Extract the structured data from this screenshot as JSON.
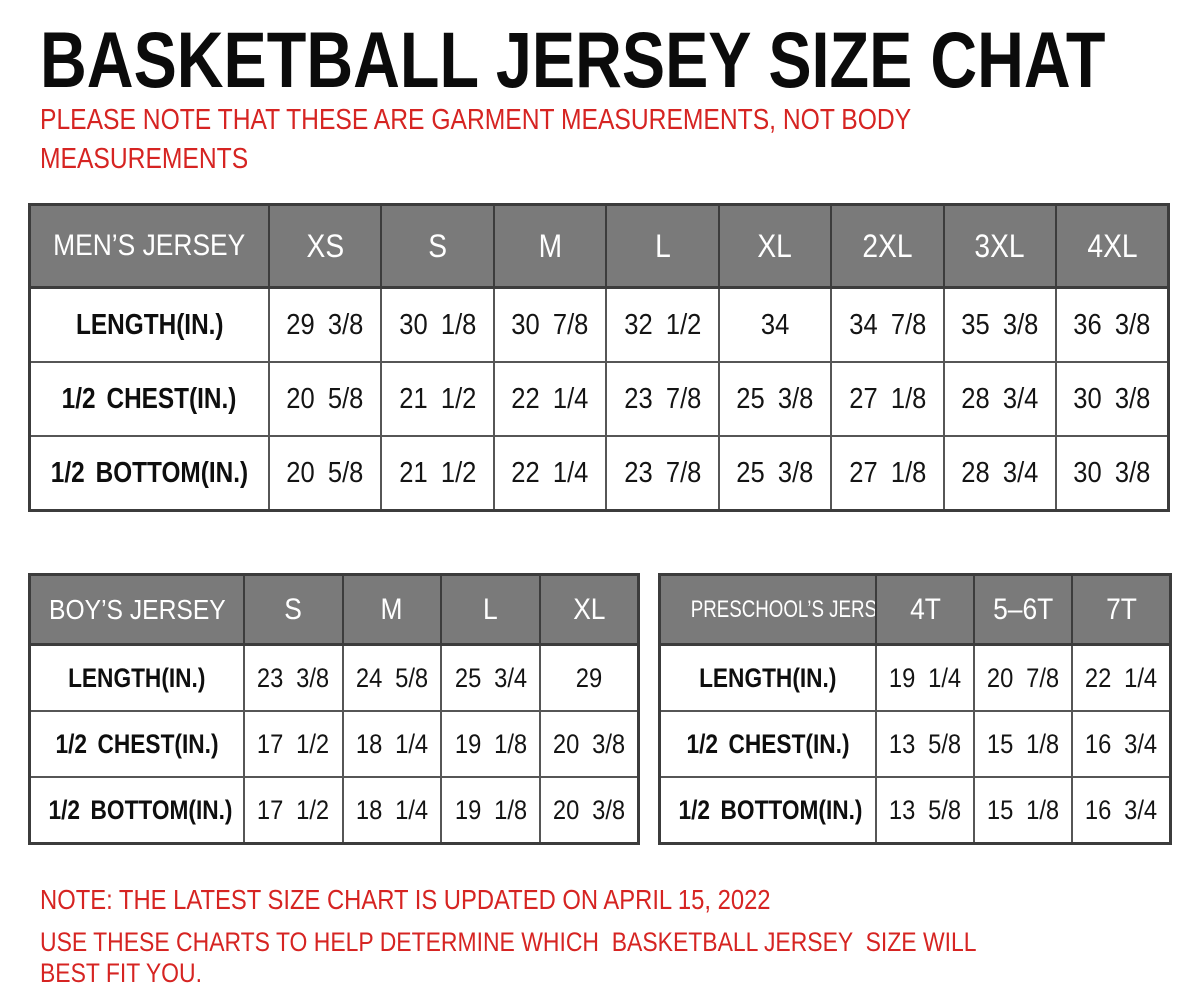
{
  "title": "BASKETBALL JERSEY SIZE CHAT",
  "subtitle": "PLEASE NOTE THAT THESE ARE GARMENT MEASUREMENTS, NOT BODY MEASUREMENTS",
  "colors": {
    "accent_red": "#d62422",
    "header_gray": "#7a7a7a",
    "border_dark": "#3c3c3c",
    "border_light": "#565656",
    "text_black": "#0b0b0b",
    "background": "#ffffff"
  },
  "tables": {
    "mens": {
      "header_label": "MEN’S JERSEY",
      "sizes": [
        "XS",
        "S",
        "M",
        "L",
        "XL",
        "2XL",
        "3XL",
        "4XL"
      ],
      "rows": [
        {
          "label": "LENGTH(IN.)",
          "values": [
            "29 3/8",
            "30 1/8",
            "30 7/8",
            "32 1/2",
            "34",
            "34 7/8",
            "35 3/8",
            "36 3/8"
          ]
        },
        {
          "label": "1/2 CHEST(IN.)",
          "values": [
            "20 5/8",
            "21 1/2",
            "22 1/4",
            "23 7/8",
            "25 3/8",
            "27 1/8",
            "28 3/4",
            "30 3/8"
          ]
        },
        {
          "label": "1/2 BOTTOM(IN.)",
          "values": [
            "20 5/8",
            "21 1/2",
            "22 1/4",
            "23 7/8",
            "25 3/8",
            "27 1/8",
            "28 3/4",
            "30 3/8"
          ]
        }
      ]
    },
    "boys": {
      "header_label": "BOY’S JERSEY",
      "sizes": [
        "S",
        "M",
        "L",
        "XL"
      ],
      "rows": [
        {
          "label": "LENGTH(IN.)",
          "values": [
            "23 3/8",
            "24 5/8",
            "25 3/4",
            "29"
          ]
        },
        {
          "label": "1/2 CHEST(IN.)",
          "values": [
            "17 1/2",
            "18 1/4",
            "19 1/8",
            "20 3/8"
          ]
        },
        {
          "label": "1/2 BOTTOM(IN.)",
          "values": [
            "17 1/2",
            "18 1/4",
            "19 1/8",
            "20 3/8"
          ]
        }
      ]
    },
    "preschool": {
      "header_label": "PRESCHOOL’S JERSEY",
      "sizes": [
        "4T",
        "5–6T",
        "7T"
      ],
      "rows": [
        {
          "label": "LENGTH(IN.)",
          "values": [
            "19 1/4",
            "20 7/8",
            "22 1/4"
          ]
        },
        {
          "label": "1/2 CHEST(IN.)",
          "values": [
            "13 5/8",
            "15 1/8",
            "16 3/4"
          ]
        },
        {
          "label": "1/2 BOTTOM(IN.)",
          "values": [
            "13 5/8",
            "15 1/8",
            "16 3/4"
          ]
        }
      ]
    }
  },
  "footnotes": [
    "NOTE: THE LATEST SIZE CHART IS UPDATED ON APRIL 15, 2022",
    "USE THESE CHARTS TO HELP DETERMINE WHICH  BASKETBALL JERSEY  SIZE WILL BEST FIT YOU."
  ]
}
